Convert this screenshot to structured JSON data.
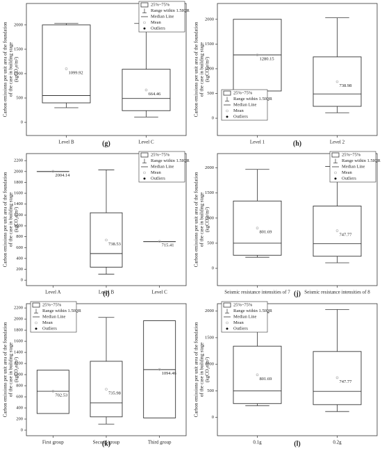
{
  "chart_data": [
    {
      "type": "box",
      "panel": "(g)",
      "y_label": [
        "Carbon emissions per unit area of the foundation",
        "of the case in building stage",
        "(kgCO₂e/m²)"
      ],
      "categories": [
        "Level B",
        "Level C"
      ],
      "boxes": [
        {
          "q1": 400,
          "median": 550,
          "q3": 2000,
          "whisker_low": 300,
          "whisker_high": 2030,
          "mean": 1099.92
        },
        {
          "q1": 240,
          "median": 490,
          "q3": 1090,
          "whisker_low": 110,
          "whisker_high": 2030,
          "mean": 664.46
        }
      ],
      "ylim": [
        -270,
        2440
      ],
      "yticks": [
        0,
        500,
        1000,
        1500,
        2000
      ],
      "legend": [
        "25%~75%",
        "Range within 1.5IQR",
        "Median Line",
        "Mean",
        "Outliers"
      ],
      "legend_loc": "upper right"
    },
    {
      "type": "box",
      "panel": "(h)",
      "y_label": [
        "Carbon emissions per unit area of the foundation",
        "of the case in building stage",
        "(kgCO₂e/m²)"
      ],
      "categories": [
        "Level 1",
        "Level 2"
      ],
      "boxes": [
        {
          "q1": 550,
          "median": 1280,
          "q3": 2000,
          "whisker_low": null,
          "whisker_high": null,
          "mean": 1280.15
        },
        {
          "q1": 240,
          "median": 490,
          "q3": 1240,
          "whisker_low": 110,
          "whisker_high": 2030,
          "mean": 738.98
        }
      ],
      "ylim": [
        -350,
        2320
      ],
      "yticks": [
        0,
        500,
        1000,
        1500,
        2000
      ],
      "legend": [
        "25%~75%",
        "Range within 1.5IQR",
        "Median Line",
        "Mean",
        "Outliers"
      ],
      "legend_loc": "lower left"
    },
    {
      "type": "box",
      "panel": "(i)",
      "y_label": [
        "Carbon emissions per unit area of the foundation",
        "of the case in building stage",
        "(kgCO₂e/m²)"
      ],
      "categories": [
        "Level A",
        "Level B",
        "Level C"
      ],
      "boxes": [
        {
          "q1": 2000,
          "median": 2000,
          "q3": 2000,
          "whisker_low": null,
          "whisker_high": null,
          "mean": 2004.14
        },
        {
          "q1": 240,
          "median": 490,
          "q3": 1240,
          "whisker_low": 110,
          "whisker_high": 2030,
          "mean": 738.53
        },
        {
          "q1": 710,
          "median": 710,
          "q3": 710,
          "whisker_low": null,
          "whisker_high": null,
          "mean": 715.41
        }
      ],
      "ylim": [
        -100,
        2330
      ],
      "yticks": [
        0,
        200,
        400,
        600,
        800,
        1000,
        1200,
        1400,
        1600,
        1800,
        2000,
        2200
      ],
      "legend": [
        "25%~75%",
        "Range within 1.5IQR",
        "Median Line",
        "Mean",
        "Outliers"
      ],
      "legend_loc": "upper right"
    },
    {
      "type": "box",
      "panel": "(j)",
      "y_label": [
        "Carbon emissions per unit area of the foundation",
        "of the case in building stage",
        "(kgCO₂e/m²)"
      ],
      "categories": [
        "Seismic resistance intensities of 7",
        "Seismic resistance intensities of 8"
      ],
      "boxes": [
        {
          "q1": 260,
          "median": 500,
          "q3": 1340,
          "whisker_low": 220,
          "whisker_high": 1970,
          "mean": 801.69
        },
        {
          "q1": 240,
          "median": 490,
          "q3": 1240,
          "whisker_low": 110,
          "whisker_high": 2030,
          "mean": 747.77
        }
      ],
      "ylim": [
        -345,
        2285
      ],
      "yticks": [
        0,
        500,
        1000,
        1500,
        2000
      ],
      "legend": [
        "25%~75%",
        "Range within 1.5IQR",
        "Median Line",
        "Mean",
        "Outliers"
      ],
      "legend_loc": "upper right"
    },
    {
      "type": "box",
      "panel": "(k)",
      "y_label": [
        "Carbon emissions per unit area of the foundation",
        "of the case in building stage",
        "(kgCO₂e/m²)"
      ],
      "categories": [
        "First group",
        "Second group",
        "Third group"
      ],
      "boxes": [
        {
          "q1": 300,
          "median": 700,
          "q3": 1080,
          "whisker_low": null,
          "whisker_high": null,
          "mean": 702.53
        },
        {
          "q1": 240,
          "median": 490,
          "q3": 1240,
          "whisker_low": 110,
          "whisker_high": 2030,
          "mean": 735.98
        },
        {
          "q1": 220,
          "median": 1090,
          "q3": 1970,
          "whisker_low": null,
          "whisker_high": null,
          "mean": 1094.46
        }
      ],
      "ylim": [
        -100,
        2277
      ],
      "yticks": [
        0,
        200,
        400,
        600,
        800,
        1000,
        1200,
        1400,
        1600,
        1800,
        2000,
        2200
      ],
      "legend": [
        "25%~75%",
        "Range within 1.5IQR",
        "Median Line",
        "Mean",
        "Outliers"
      ],
      "legend_loc": "upper left"
    },
    {
      "type": "box",
      "panel": "(l)",
      "y_label": [
        "Carbon emissions per unit area of the foundation",
        "of the case in building stage",
        "(kgCO₂e/m²)"
      ],
      "categories": [
        "0.1g",
        "0.2g"
      ],
      "boxes": [
        {
          "q1": 260,
          "median": 500,
          "q3": 1340,
          "whisker_low": 220,
          "whisker_high": 1970,
          "mean": 801.69
        },
        {
          "q1": 240,
          "median": 490,
          "q3": 1240,
          "whisker_low": 110,
          "whisker_high": 2030,
          "mean": 747.77
        }
      ],
      "ylim": [
        -345,
        2140
      ],
      "yticks": [
        0,
        500,
        1000,
        1500,
        2000
      ],
      "legend": [
        "25%~75%",
        "Range within 1.5IQR",
        "Median Line",
        "Mean",
        "Outliers"
      ],
      "legend_loc": "upper left"
    }
  ]
}
